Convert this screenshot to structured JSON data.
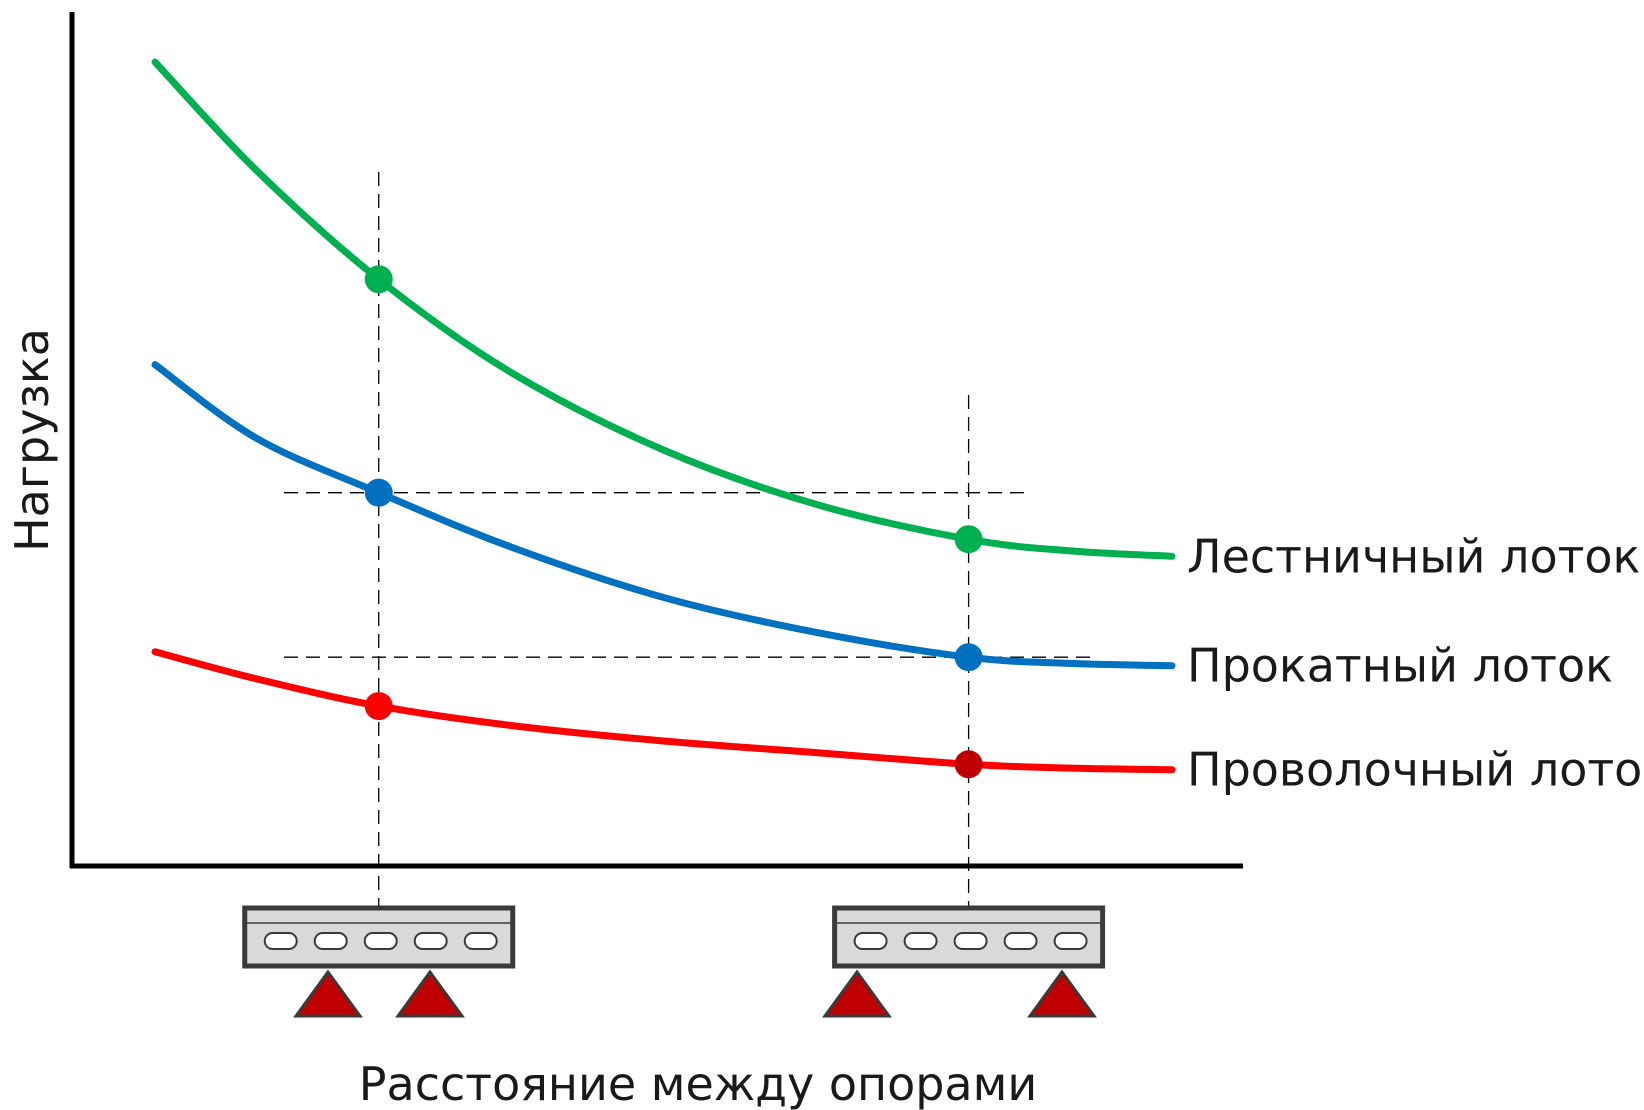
{
  "chart_data": {
    "type": "line",
    "title": "",
    "xlabel": "Расстояние между опорами",
    "ylabel": "Нагрузка",
    "x_ticks_shown": false,
    "y_ticks_shown": false,
    "grid": false,
    "legend": "inline labels at right end of each curve",
    "series": [
      {
        "name": "Лестничный лоток",
        "color": "#00b050",
        "marker_color": "#00b050",
        "curve": [
          [
            0.0,
            1.0
          ],
          [
            0.1,
            0.86
          ],
          [
            0.22,
            0.72
          ],
          [
            0.35,
            0.6
          ],
          [
            0.5,
            0.5
          ],
          [
            0.65,
            0.43
          ],
          [
            0.8,
            0.385
          ],
          [
            0.9,
            0.37
          ],
          [
            1.0,
            0.363
          ]
        ],
        "markers": [
          [
            0.22,
            0.72
          ],
          [
            0.8,
            0.385
          ]
        ]
      },
      {
        "name": "Прокатный лоток",
        "color": "#0070c0",
        "marker_color": "#0070c0",
        "curve": [
          [
            0.0,
            0.61
          ],
          [
            0.1,
            0.515
          ],
          [
            0.22,
            0.445
          ],
          [
            0.35,
            0.375
          ],
          [
            0.5,
            0.31
          ],
          [
            0.65,
            0.265
          ],
          [
            0.8,
            0.233
          ],
          [
            0.9,
            0.225
          ],
          [
            1.0,
            0.222
          ]
        ],
        "markers": [
          [
            0.22,
            0.445
          ],
          [
            0.8,
            0.233
          ]
        ]
      },
      {
        "name": "Проволочный лоток",
        "color": "#ff0000",
        "marker_color_first": "#ff0000",
        "marker_color_second": "#c00000",
        "curve": [
          [
            0.0,
            0.24
          ],
          [
            0.1,
            0.205
          ],
          [
            0.22,
            0.17
          ],
          [
            0.35,
            0.145
          ],
          [
            0.5,
            0.125
          ],
          [
            0.65,
            0.11
          ],
          [
            0.8,
            0.095
          ],
          [
            0.9,
            0.09
          ],
          [
            1.0,
            0.088
          ]
        ],
        "markers": [
          [
            0.22,
            0.17
          ],
          [
            0.8,
            0.095
          ]
        ]
      }
    ],
    "reference_x": [
      0.22,
      0.8
    ],
    "reference_y": [
      0.445,
      0.233
    ],
    "supports_illustration": {
      "tray_color": "#d9d9d9",
      "support_color": "#c00000",
      "holes_per_tray": 5
    }
  }
}
